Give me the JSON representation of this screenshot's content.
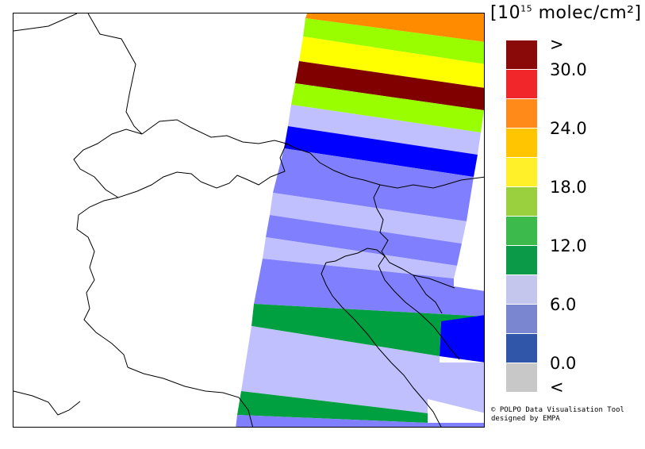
{
  "legend": {
    "unit_prefix": "[10",
    "unit_exponent": "15",
    "unit_suffix": " molec/cm²]",
    "bins": [
      {
        "label": "<",
        "color": "#c8c8c8"
      },
      {
        "label": "0.0",
        "color": "#2f56a8"
      },
      {
        "label": "",
        "color": "#7a87d0"
      },
      {
        "label": "6.0",
        "color": "#c4c6ee"
      },
      {
        "label": "",
        "color": "#0a9a48"
      },
      {
        "label": "12.0",
        "color": "#3dba4c"
      },
      {
        "label": "",
        "color": "#9ad03e"
      },
      {
        "label": "18.0",
        "color": "#fff02a"
      },
      {
        "label": "",
        "color": "#ffc600"
      },
      {
        "label": "24.0",
        "color": "#ff8a1a"
      },
      {
        "label": "",
        "color": "#f0262a"
      },
      {
        "label": "30.0",
        "color": "#8a0a0a"
      },
      {
        "label": ">",
        "color": ""
      }
    ]
  },
  "swath_colors": {
    "orange": "#ff8c00",
    "lime": "#99ff00",
    "yellow": "#ffff00",
    "maroon": "#800000",
    "lavender": "#c0c0ff",
    "blue": "#0000ff",
    "periwinkle": "#8080ff",
    "green": "#00a040"
  },
  "credit": {
    "line1": "© POLPO Data Visualisation Tool",
    "line2": "designed by EMPA"
  }
}
